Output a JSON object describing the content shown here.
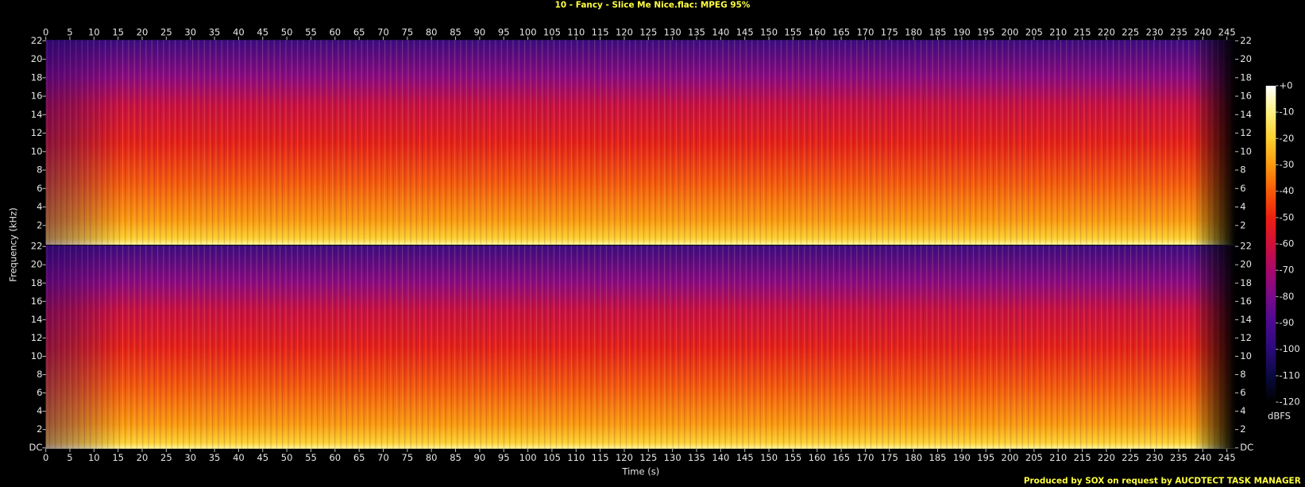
{
  "chart_data": {
    "type": "spectrogram",
    "title": "10 - Fancy - Slice Me Nice.flac: MPEG 95%",
    "xlabel": "Time (s)",
    "ylabel": "Frequency (kHz)",
    "footer": "Produced by SOX on request by AUCDTECT TASK MANAGER",
    "xlim": [
      0,
      246.7
    ],
    "xticks": [
      0,
      5,
      10,
      15,
      20,
      25,
      30,
      35,
      40,
      45,
      50,
      55,
      60,
      65,
      70,
      75,
      80,
      85,
      90,
      95,
      100,
      105,
      110,
      115,
      120,
      125,
      130,
      135,
      140,
      145,
      150,
      155,
      160,
      165,
      170,
      175,
      180,
      185,
      190,
      195,
      200,
      205,
      210,
      215,
      220,
      225,
      230,
      235,
      240,
      245
    ],
    "ylim": [
      0,
      22
    ],
    "yticks": [
      {
        "value": 0,
        "label": "DC"
      },
      2,
      4,
      6,
      8,
      10,
      12,
      14,
      16,
      18,
      20,
      22
    ],
    "colorbar": {
      "label": "dBFS",
      "lim": [
        -120,
        0
      ],
      "ticks": [
        {
          "value": 0,
          "label": "+0"
        },
        -10,
        -20,
        -30,
        -40,
        -50,
        -60,
        -70,
        -80,
        -90,
        -100,
        -110,
        -120
      ],
      "colormap": [
        "#000000",
        "#0a0a40",
        "#2a0a7a",
        "#4a0a90",
        "#7a0a8a",
        "#a8086a",
        "#d0103a",
        "#ec2010",
        "#f85a08",
        "#fc9a10",
        "#fcd030",
        "#fdf080",
        "#ffffff"
      ]
    }
  }
}
